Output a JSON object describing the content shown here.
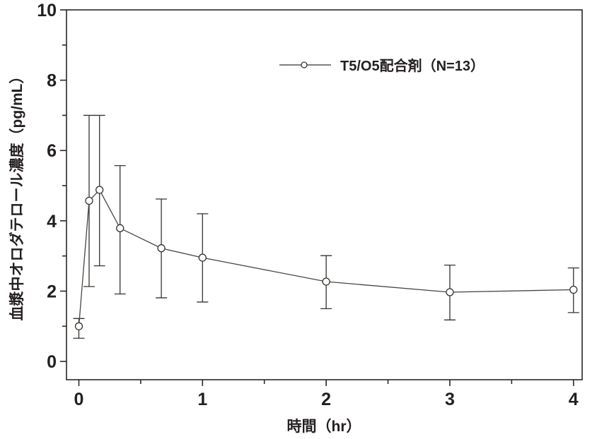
{
  "chart_data": {
    "type": "line",
    "title": "",
    "xlabel": "時間（hr）",
    "ylabel": "血漿中オロダテロール濃度（pg/mL）",
    "xlim": [
      -0.1,
      4.07
    ],
    "ylim": [
      -0.52,
      10
    ],
    "grid": false,
    "marker": "open-circle",
    "x_major_ticks": [
      0,
      1,
      2,
      3,
      4
    ],
    "x_minor_ticks": [
      0.5,
      1.5,
      2.5,
      3.5
    ],
    "x_tick_labels": [
      "0",
      "1",
      "2",
      "3",
      "4"
    ],
    "y_major_ticks": [
      0,
      2,
      4,
      6,
      8,
      10
    ],
    "y_minor_ticks": [
      1,
      3,
      5,
      7,
      9
    ],
    "y_tick_labels": [
      "0",
      "2",
      "4",
      "6",
      "8",
      "10"
    ],
    "legend": {
      "label": "T5/O5配合剤（N=13）",
      "position": "top-center",
      "marker": "line-with-open-circle"
    },
    "series": [
      {
        "name": "T5/O5配合剤（N=13）",
        "x": [
          0,
          0.083,
          0.167,
          0.333,
          0.667,
          1,
          2,
          3,
          4
        ],
        "y": [
          1.0,
          4.57,
          4.88,
          3.79,
          3.22,
          2.95,
          2.27,
          1.97,
          2.04
        ],
        "err_low": [
          0.66,
          2.13,
          2.72,
          1.92,
          1.81,
          1.69,
          1.5,
          1.18,
          1.39
        ],
        "err_high": [
          1.22,
          7.0,
          7.0,
          5.57,
          4.62,
          4.2,
          3.01,
          2.74,
          2.66
        ]
      }
    ],
    "colors": {
      "line": "#37332f",
      "text": "#231f20",
      "background": "#ffffff"
    }
  }
}
